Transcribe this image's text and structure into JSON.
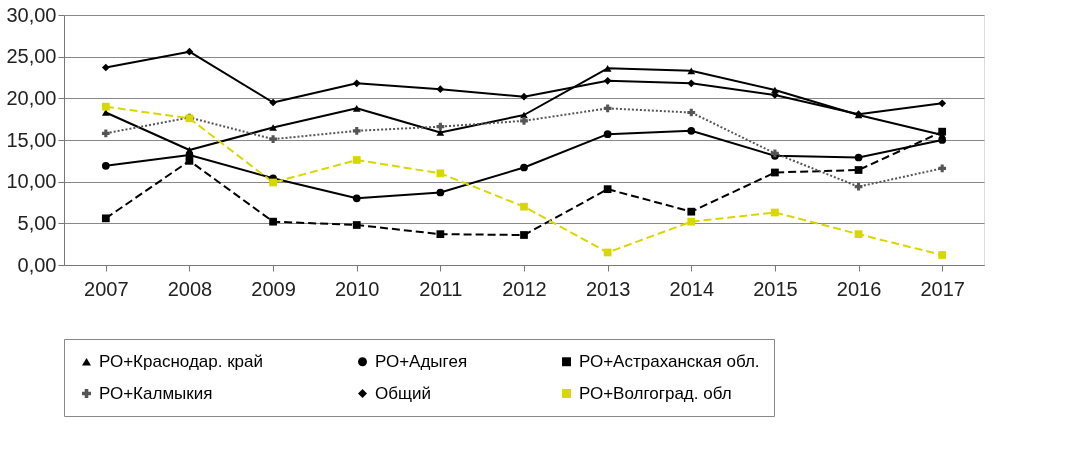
{
  "chart_data": {
    "type": "line",
    "categories": [
      "2007",
      "2008",
      "2009",
      "2010",
      "2011",
      "2012",
      "2013",
      "2014",
      "2015",
      "2016",
      "2017"
    ],
    "series": [
      {
        "name": "РО+Краснодар. край",
        "color": "#000000",
        "marker": "triangle",
        "line_style": "solid",
        "values": [
          18.3,
          13.8,
          16.5,
          18.8,
          15.9,
          18.0,
          23.6,
          23.3,
          21.0,
          18.0,
          15.6
        ]
      },
      {
        "name": "РО+Адыгея",
        "color": "#000000",
        "marker": "circle",
        "line_style": "solid",
        "values": [
          11.9,
          13.2,
          10.4,
          8.0,
          8.7,
          11.7,
          15.7,
          16.1,
          13.1,
          12.9,
          15.0
        ]
      },
      {
        "name": "РО+Астраханская обл.",
        "color": "#000000",
        "marker": "square",
        "line_style": "dashed",
        "values": [
          5.6,
          12.5,
          5.2,
          4.8,
          3.7,
          3.6,
          9.1,
          6.4,
          11.1,
          11.4,
          16.0
        ]
      },
      {
        "name": "РО+Калмыкия",
        "color": "#555555",
        "marker": "cross",
        "line_style": "dotted",
        "values": [
          15.8,
          17.7,
          15.1,
          16.1,
          16.6,
          17.3,
          18.8,
          18.3,
          13.4,
          9.4,
          11.6
        ]
      },
      {
        "name": "Общий",
        "color": "#000000",
        "marker": "diamond",
        "line_style": "solid",
        "values": [
          23.7,
          25.6,
          19.5,
          21.8,
          21.1,
          20.2,
          22.1,
          21.8,
          20.4,
          18.1,
          19.4
        ]
      },
      {
        "name": "РО+Волгоград. обл",
        "color": "#d8d800",
        "marker": "square",
        "line_style": "dashed",
        "values": [
          19.0,
          17.6,
          9.9,
          12.6,
          11.0,
          7.0,
          1.5,
          5.2,
          6.3,
          3.7,
          1.2
        ]
      }
    ],
    "ylim": [
      0,
      30
    ],
    "yticks": [
      {
        "value": 0,
        "label": "0,00"
      },
      {
        "value": 5,
        "label": "5,00"
      },
      {
        "value": 10,
        "label": "10,00"
      },
      {
        "value": 15,
        "label": "15,00"
      },
      {
        "value": 20,
        "label": "20,00"
      },
      {
        "value": 25,
        "label": "25,00"
      },
      {
        "value": 30,
        "label": "30,00"
      }
    ],
    "grid": "y",
    "legend": "bottom"
  }
}
